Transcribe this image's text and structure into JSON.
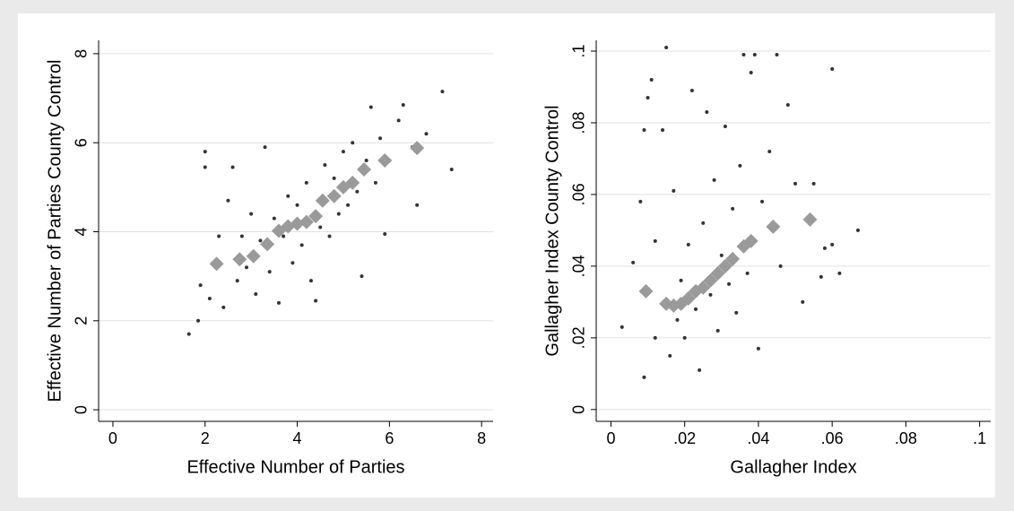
{
  "chart_data": [
    {
      "type": "scatter",
      "x_label": "Effective Number of Parties",
      "y_label": "Effective Number of Parties County Control",
      "xlim": [
        -0.31,
        8.25
      ],
      "ylim": [
        -0.26,
        8.3
      ],
      "xticks": [
        0,
        2,
        4,
        6,
        8
      ],
      "yticks": [
        0,
        2,
        4,
        6,
        8
      ],
      "grid": true,
      "series": [
        {
          "marker": "dot",
          "color": "#333333",
          "x": [
            1.65,
            1.85,
            1.9,
            2.0,
            2.0,
            2.1,
            2.3,
            2.4,
            2.5,
            2.6,
            2.7,
            2.8,
            2.9,
            3.0,
            3.1,
            3.2,
            3.3,
            3.4,
            3.5,
            3.6,
            3.7,
            3.8,
            3.9,
            4.0,
            4.1,
            4.2,
            4.3,
            4.4,
            4.5,
            4.6,
            4.7,
            4.8,
            4.9,
            5.0,
            5.1,
            5.2,
            5.3,
            5.4,
            5.5,
            5.6,
            5.7,
            5.8,
            5.9,
            6.0,
            6.2,
            6.3,
            6.5,
            6.6,
            6.8,
            7.15,
            7.35
          ],
          "values": [
            1.7,
            2.0,
            2.8,
            5.8,
            5.45,
            2.5,
            3.9,
            2.3,
            4.7,
            5.45,
            2.9,
            3.9,
            3.2,
            4.4,
            2.6,
            3.8,
            5.9,
            3.1,
            4.3,
            2.4,
            3.9,
            4.8,
            3.3,
            4.6,
            3.7,
            5.1,
            2.9,
            2.45,
            4.1,
            5.5,
            3.9,
            5.2,
            4.4,
            5.8,
            4.6,
            6.0,
            4.9,
            3.0,
            5.6,
            6.8,
            5.1,
            6.1,
            3.95,
            5.6,
            6.5,
            6.85,
            5.9,
            4.6,
            6.2,
            7.15,
            5.4
          ]
        },
        {
          "marker": "diamond",
          "color": "#9a9a9a",
          "x": [
            2.25,
            2.75,
            3.05,
            3.35,
            3.6,
            3.8,
            4.0,
            4.2,
            4.4,
            4.55,
            4.8,
            5.0,
            5.2,
            5.45,
            5.9,
            6.6
          ],
          "values": [
            3.28,
            3.38,
            3.45,
            3.72,
            4.02,
            4.12,
            4.18,
            4.22,
            4.35,
            4.7,
            4.8,
            5.0,
            5.1,
            5.4,
            5.6,
            5.88
          ]
        }
      ]
    },
    {
      "type": "scatter",
      "x_label": "Gallagher Index",
      "y_label": "Gallagher Index County Control",
      "xlim": [
        -0.004,
        0.103
      ],
      "ylim": [
        -0.0033,
        0.103
      ],
      "xticks": [
        0,
        {
          "value": 0.02,
          "label": ".02"
        },
        {
          "value": 0.04,
          "label": ".04"
        },
        {
          "value": 0.06,
          "label": ".06"
        },
        {
          "value": 0.08,
          "label": ".08"
        },
        {
          "value": 0.1,
          "label": ".1"
        }
      ],
      "yticks": [
        0,
        {
          "value": 0.02,
          "label": ".02"
        },
        {
          "value": 0.04,
          "label": ".04"
        },
        {
          "value": 0.06,
          "label": ".06"
        },
        {
          "value": 0.08,
          "label": ".08"
        },
        {
          "value": 0.1,
          "label": ".1"
        }
      ],
      "grid": true,
      "series": [
        {
          "marker": "dot",
          "color": "#333333",
          "x": [
            0.003,
            0.006,
            0.008,
            0.009,
            0.009,
            0.01,
            0.011,
            0.012,
            0.012,
            0.014,
            0.015,
            0.016,
            0.017,
            0.018,
            0.019,
            0.02,
            0.021,
            0.022,
            0.023,
            0.024,
            0.025,
            0.026,
            0.027,
            0.028,
            0.029,
            0.03,
            0.031,
            0.032,
            0.033,
            0.034,
            0.035,
            0.036,
            0.037,
            0.038,
            0.039,
            0.04,
            0.041,
            0.043,
            0.045,
            0.046,
            0.048,
            0.05,
            0.052,
            0.055,
            0.057,
            0.058,
            0.06,
            0.06,
            0.062,
            0.067
          ],
          "values": [
            0.023,
            0.041,
            0.058,
            0.009,
            0.078,
            0.087,
            0.092,
            0.02,
            0.047,
            0.078,
            0.101,
            0.015,
            0.061,
            0.025,
            0.036,
            0.02,
            0.046,
            0.089,
            0.028,
            0.011,
            0.052,
            0.083,
            0.032,
            0.064,
            0.022,
            0.043,
            0.079,
            0.035,
            0.056,
            0.027,
            0.068,
            0.099,
            0.038,
            0.094,
            0.099,
            0.017,
            0.058,
            0.072,
            0.099,
            0.04,
            0.085,
            0.063,
            0.03,
            0.063,
            0.037,
            0.045,
            0.095,
            0.046,
            0.038,
            0.05
          ]
        },
        {
          "marker": "diamond",
          "color": "#9a9a9a",
          "x": [
            0.0095,
            0.015,
            0.017,
            0.019,
            0.021,
            0.023,
            0.025,
            0.027,
            0.029,
            0.031,
            0.033,
            0.036,
            0.038,
            0.044,
            0.054
          ],
          "values": [
            0.033,
            0.0295,
            0.029,
            0.0295,
            0.031,
            0.033,
            0.034,
            0.036,
            0.038,
            0.04,
            0.042,
            0.0455,
            0.047,
            0.051,
            0.053
          ]
        }
      ]
    }
  ]
}
